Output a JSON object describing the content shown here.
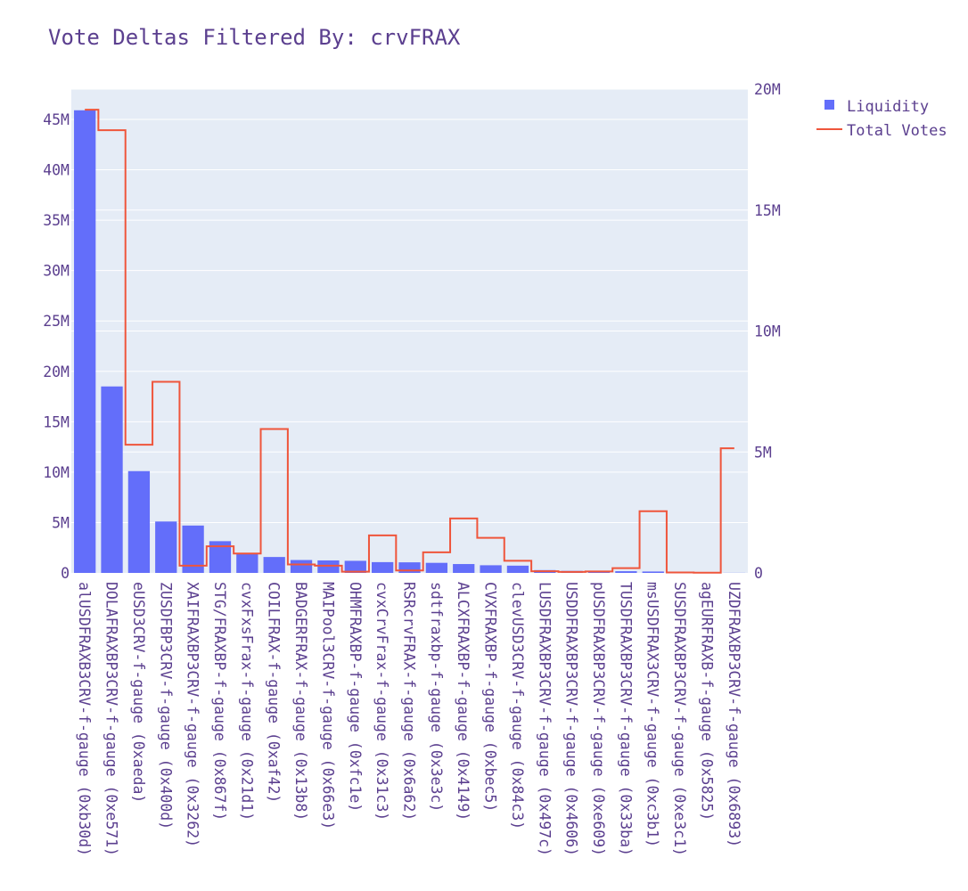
{
  "chart_data": {
    "type": "bar",
    "title": "Vote Deltas Filtered By: crvFRAX",
    "xlabel": "",
    "ylabel": "",
    "ylim": [
      0,
      48000000
    ],
    "y2lim": [
      0,
      20000000
    ],
    "y_ticks": [
      {
        "value": 0,
        "label": "0"
      },
      {
        "value": 5000000,
        "label": "5M"
      },
      {
        "value": 10000000,
        "label": "10M"
      },
      {
        "value": 15000000,
        "label": "15M"
      },
      {
        "value": 20000000,
        "label": "20M"
      },
      {
        "value": 25000000,
        "label": "25M"
      },
      {
        "value": 30000000,
        "label": "30M"
      },
      {
        "value": 35000000,
        "label": "35M"
      },
      {
        "value": 40000000,
        "label": "40M"
      },
      {
        "value": 45000000,
        "label": "45M"
      }
    ],
    "y2_ticks": [
      {
        "value": 0,
        "label": "0"
      },
      {
        "value": 5000000,
        "label": "5M"
      },
      {
        "value": 10000000,
        "label": "10M"
      },
      {
        "value": 15000000,
        "label": "15M"
      },
      {
        "value": 20000000,
        "label": "20M"
      }
    ],
    "grid": true,
    "legend_position": "top-right",
    "categories": [
      "alUSDFRAXB3CRV-f-gauge (0xb30d)",
      "DOLAFRAXBP3CRV-f-gauge (0xe571)",
      "eUSD3CRV-f-gauge (0xaeda)",
      "ZUSDFBP3CRV-f-gauge (0x400d)",
      "XAIFRAXBP3CRV-f-gauge (0x3262)",
      "STG/FRAXBP-f-gauge (0x867f)",
      "cvxFxsFrax-f-gauge (0x21d1)",
      "COILFRAX-f-gauge (0xaf42)",
      "BADGERFRAX-f-gauge (0x13b8)",
      "MAIPool3CRV-f-gauge (0x66e3)",
      "OHMFRAXBP-f-gauge (0xfc1e)",
      "cvxCrvFrax-f-gauge (0x31c3)",
      "RSRcrvFRAX-f-gauge (0x6a62)",
      "sdtfraxbp-f-gauge (0x3e3c)",
      "ALCXFRAXBP-f-gauge (0x4149)",
      "CVXFRAXBP-f-gauge (0xbec5)",
      "clevUSD3CRV-f-gauge (0x84c3)",
      "LUSDFRAXBP3CRV-f-gauge (0x497c)",
      "USDDFRAXBP3CRV-f-gauge (0x4606)",
      "pUSDFRAXBP3CRV-f-gauge (0xe609)",
      "TUSDFRAXBP3CRV-f-gauge (0x33ba)",
      "msUSDFRAX3CRV-f-gauge (0xc3b1)",
      "SUSDFRAXBP3CRV-f-gauge (0xe3c1)",
      "agEURFRAXB-f-gauge (0x5825)",
      "UZDFRAXBP3CRV-f-gauge (0x6893)"
    ],
    "series": [
      {
        "name": "Liquidity",
        "type": "bar",
        "axis": "y",
        "color": "#636efa",
        "values": [
          45900000,
          18500000,
          10100000,
          5100000,
          4700000,
          3150000,
          1900000,
          1580000,
          1280000,
          1240000,
          1200000,
          1070000,
          1050000,
          1000000,
          880000,
          760000,
          720000,
          280000,
          200000,
          190000,
          170000,
          140000,
          60000,
          30000,
          10000
        ]
      },
      {
        "name": "Total Votes",
        "type": "step-line",
        "axis": "y2",
        "color": "#ef553b",
        "values": [
          19150000,
          18300000,
          5300000,
          7900000,
          300000,
          1100000,
          800000,
          5950000,
          350000,
          300000,
          50000,
          1550000,
          100000,
          850000,
          2250000,
          1450000,
          500000,
          70000,
          40000,
          60000,
          200000,
          2550000,
          20000,
          10000,
          5150000
        ]
      }
    ]
  }
}
